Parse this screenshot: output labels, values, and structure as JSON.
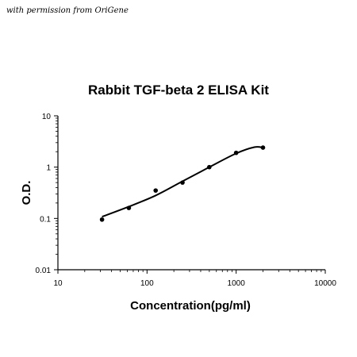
{
  "watermark": "with permission from OriGene",
  "chart_data": {
    "type": "scatter",
    "title": "Rabbit TGF-beta 2 ELISA Kit",
    "xlabel": "Concentration(pg/ml)",
    "ylabel": "O.D.",
    "xscale": "log",
    "yscale": "log",
    "xlim": [
      10,
      10000
    ],
    "ylim": [
      0.01,
      10
    ],
    "x_ticks": [
      {
        "value": 10,
        "label": "10"
      },
      {
        "value": 100,
        "label": "100"
      },
      {
        "value": 1000,
        "label": "1000"
      },
      {
        "value": 10000,
        "label": "10000"
      }
    ],
    "y_ticks": [
      {
        "value": 0.01,
        "label": "0.01"
      },
      {
        "value": 0.1,
        "label": "0.1"
      },
      {
        "value": 1,
        "label": "1"
      },
      {
        "value": 10,
        "label": "10"
      }
    ],
    "grid": false,
    "legend": "none",
    "points": [
      {
        "x": 31.25,
        "y": 0.095
      },
      {
        "x": 62.5,
        "y": 0.16
      },
      {
        "x": 125,
        "y": 0.35
      },
      {
        "x": 250,
        "y": 0.5
      },
      {
        "x": 500,
        "y": 1.0
      },
      {
        "x": 1000,
        "y": 1.9
      },
      {
        "x": 2000,
        "y": 2.4
      }
    ],
    "fit_curve": [
      {
        "x": 31.25,
        "y": 0.108
      },
      {
        "x": 62.5,
        "y": 0.17
      },
      {
        "x": 125,
        "y": 0.28
      },
      {
        "x": 250,
        "y": 0.53
      },
      {
        "x": 500,
        "y": 1.0
      },
      {
        "x": 1000,
        "y": 1.85
      },
      {
        "x": 1600,
        "y": 2.45
      },
      {
        "x": 2000,
        "y": 2.4
      }
    ],
    "colors": {
      "axis": "#000000",
      "points": "#000000",
      "curve": "#000000"
    }
  }
}
